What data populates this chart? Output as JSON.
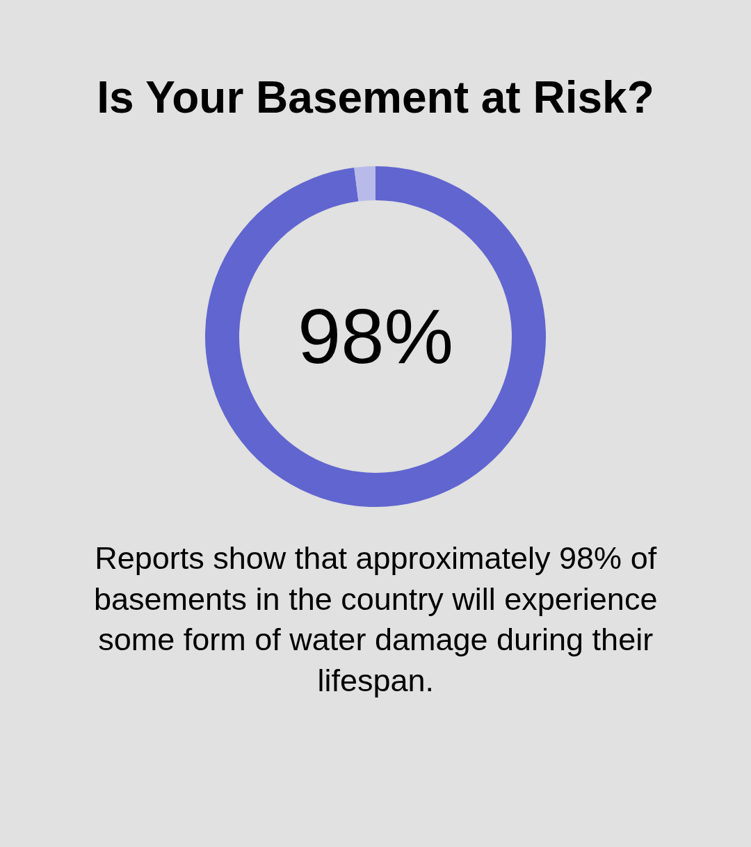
{
  "chart_data": {
    "type": "donut",
    "title": "Is Your Basement at Risk?",
    "categories": [
      null,
      null
    ],
    "values": [
      98,
      2
    ],
    "colors": [
      "#6065cf",
      "#b8bbe9"
    ],
    "annotations": [
      "98%",
      "Reports show that approximately 98% of basements in the country will experience some form of water damage during their lifespan."
    ]
  }
}
